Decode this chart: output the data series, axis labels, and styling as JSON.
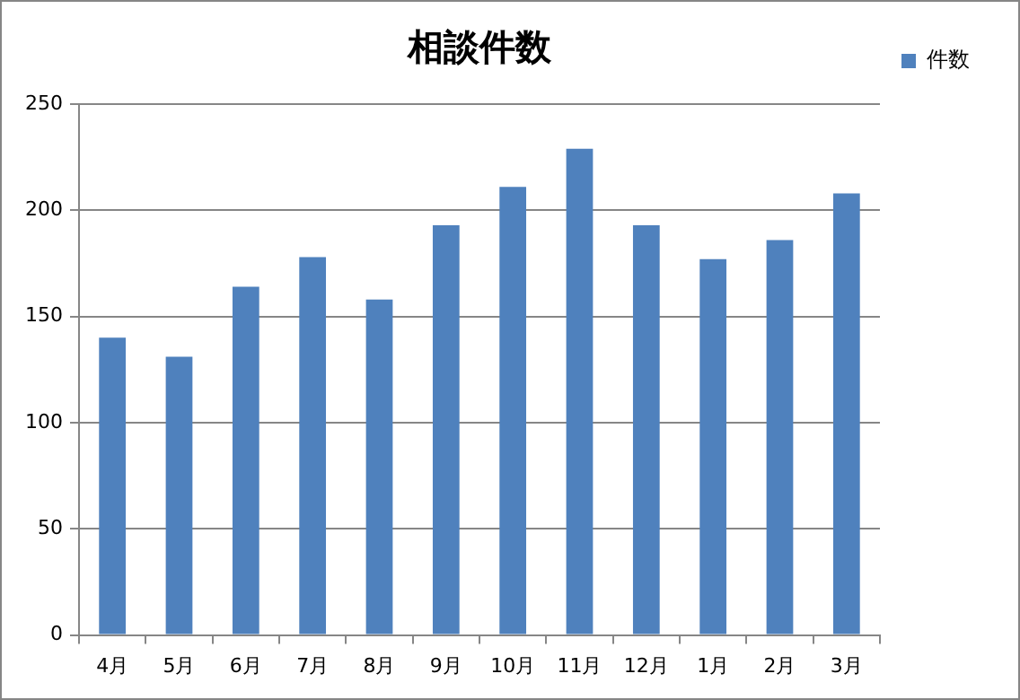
{
  "chart_data": {
    "type": "bar",
    "title": "相談件数",
    "categories": [
      "4月",
      "5月",
      "6月",
      "7月",
      "8月",
      "9月",
      "10月",
      "11月",
      "12月",
      "1月",
      "2月",
      "3月"
    ],
    "series": [
      {
        "name": "件数",
        "color": "#4f81bd",
        "values": [
          140,
          131,
          164,
          178,
          158,
          193,
          211,
          229,
          193,
          177,
          186,
          208
        ]
      }
    ],
    "ylim": [
      0,
      250
    ],
    "yticks": [
      0,
      50,
      100,
      150,
      200,
      250
    ],
    "grid": "y",
    "legend": "top right"
  }
}
